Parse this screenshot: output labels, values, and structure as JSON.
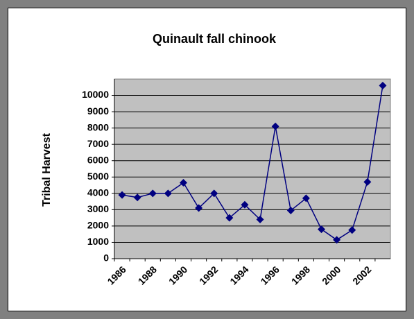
{
  "chart_data": {
    "type": "line",
    "title": "Quinault fall chinook",
    "y_label": "Tribal Harvest",
    "categories": [
      "1986",
      null,
      "1988",
      null,
      "1990",
      null,
      "1992",
      null,
      "1994",
      null,
      "1996",
      null,
      "1998",
      null,
      "2000",
      null,
      "2002",
      null
    ],
    "series": [
      {
        "name": "Tribal Harvest",
        "color": "#000080",
        "values": [
          3900,
          3750,
          4000,
          4000,
          4650,
          3100,
          4000,
          2500,
          3300,
          2400,
          8100,
          2950,
          3700,
          1800,
          1150,
          1750,
          4700,
          10600
        ]
      }
    ],
    "ylim": [
      0,
      11000
    ],
    "yticks": [
      0,
      1000,
      2000,
      3000,
      4000,
      5000,
      6000,
      7000,
      8000,
      9000,
      10000
    ],
    "grid": true
  }
}
